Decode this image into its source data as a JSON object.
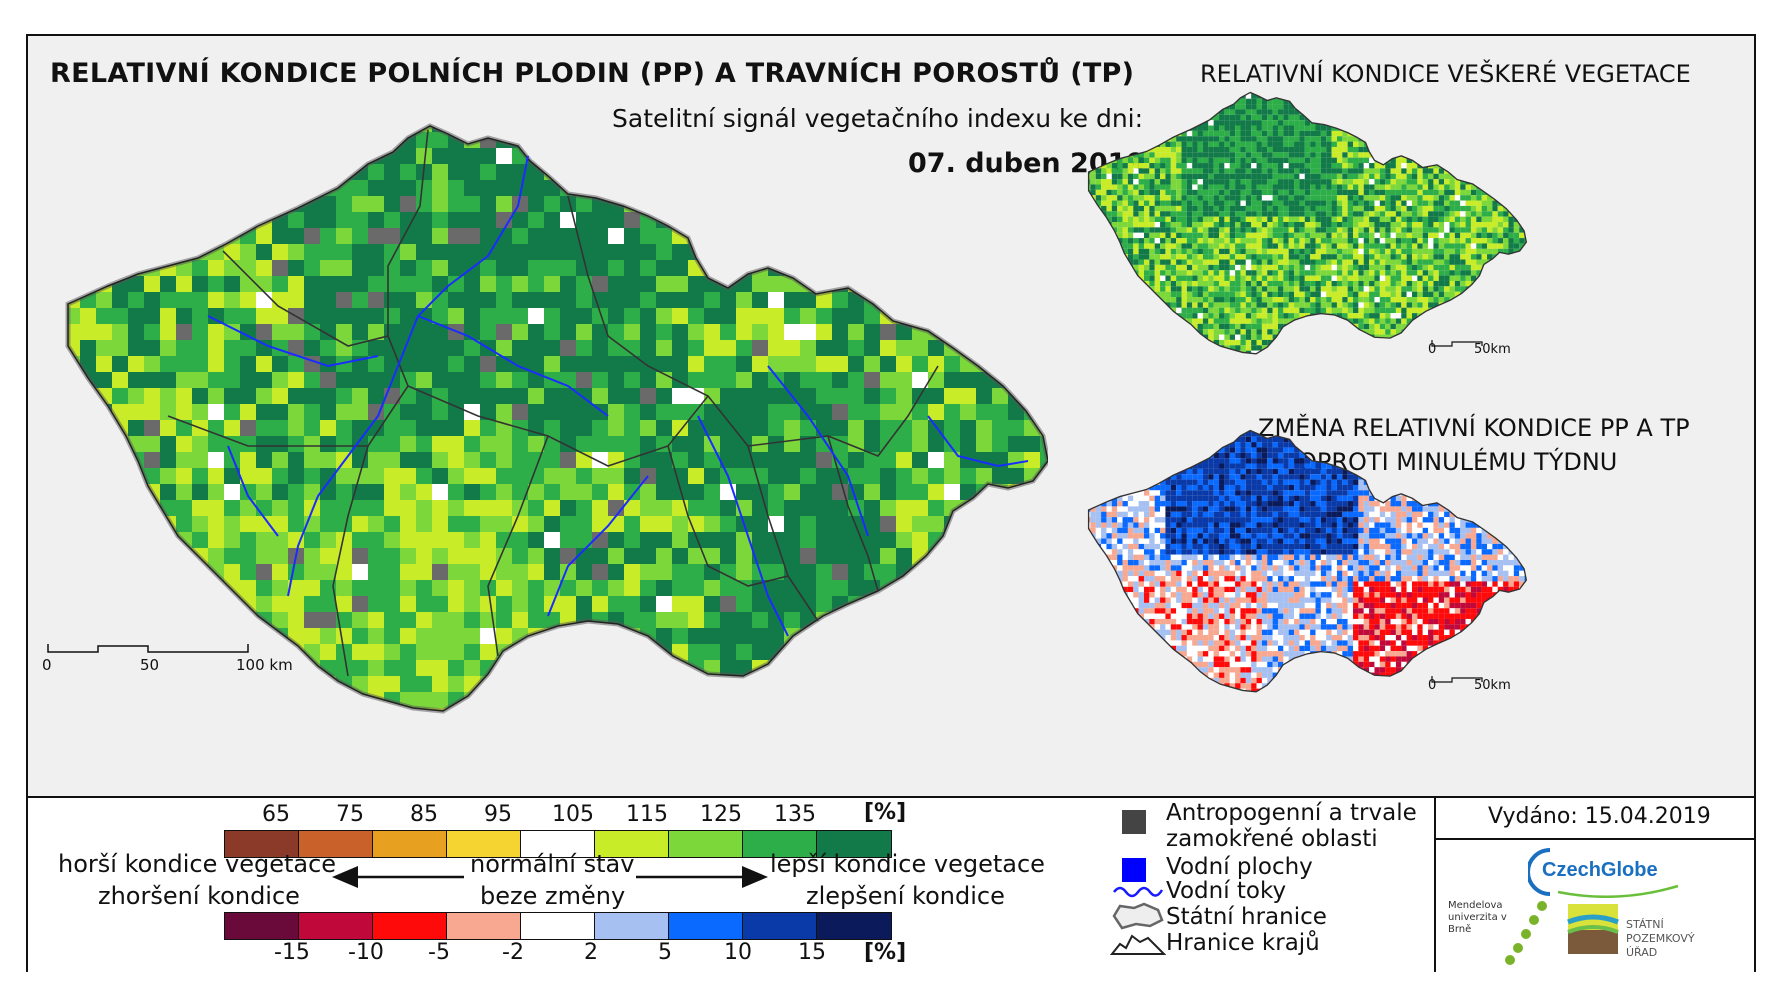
{
  "titles": {
    "main": "RELATIVNÍ KONDICE POLNÍCH PLODIN (PP) A TRAVNÍCH POROSTŮ (TP)",
    "subtitle": "Satelitní signál vegetačního indexu ke dni:",
    "date": "07. duben 2019",
    "right_top": "RELATIVNÍ KONDICE VEŠKERÉ VEGETACE",
    "right_bottom_line1": "ZMĚNA RELATIVNÍ KONDICE PP A TP",
    "right_bottom_line2": "OPROTI MINULÉMU TÝDNU"
  },
  "scale_main": {
    "zero": "0",
    "mid": "50",
    "end": "100 km"
  },
  "scale_mini": {
    "zero": "0",
    "end": "50km"
  },
  "legend_condition": {
    "ticks": [
      "65",
      "75",
      "85",
      "95",
      "105",
      "115",
      "125",
      "135"
    ],
    "unit": "[%]",
    "colors": [
      "#8b3a2a",
      "#c8622a",
      "#e8a020",
      "#f5d330",
      "#ffffff",
      "#c8ec28",
      "#7cd83a",
      "#2eae48",
      "#127a48"
    ]
  },
  "legend_change": {
    "ticks": [
      "-15",
      "-10",
      "-5",
      "-2",
      "2",
      "5",
      "10",
      "15"
    ],
    "unit": "[%]",
    "colors": [
      "#6a0a3a",
      "#c0093a",
      "#ff0a0a",
      "#f8a890",
      "#ffffff",
      "#a6c0f2",
      "#0a6aff",
      "#0a3aa8",
      "#0a1a5a"
    ]
  },
  "legend_arrows": {
    "left_line1": "horší kondice vegetace",
    "left_line2": "zhoršení kondice",
    "center_line1": "normální stav",
    "center_line2": "beze změny",
    "right_line1": "lepší kondice vegetace",
    "right_line2": "zlepšení kondice"
  },
  "legend_symbols": [
    {
      "label": "Antropogenní a trvale",
      "icon": "dark-square",
      "color": "#444444"
    },
    {
      "label": "zamokřené oblasti",
      "icon": "",
      "color": ""
    },
    {
      "label": "Vodní plochy",
      "icon": "blue-square",
      "color": "#0000ff"
    },
    {
      "label": "Vodní toky",
      "icon": "river-line",
      "color": "#1a1aff"
    },
    {
      "label": "Státní hranice",
      "icon": "state-border",
      "color": "#999999"
    },
    {
      "label": "Hranice krajů",
      "icon": "region-border",
      "color": "#222222"
    }
  ],
  "issued": "Vydáno: 15.04.2019",
  "logos": {
    "czechglobe": "CzechGlobe",
    "mendelu": "Mendelova univerzita v Brně",
    "spu": "STÁTNÍ POZEMKOVÝ ÚŘAD"
  }
}
